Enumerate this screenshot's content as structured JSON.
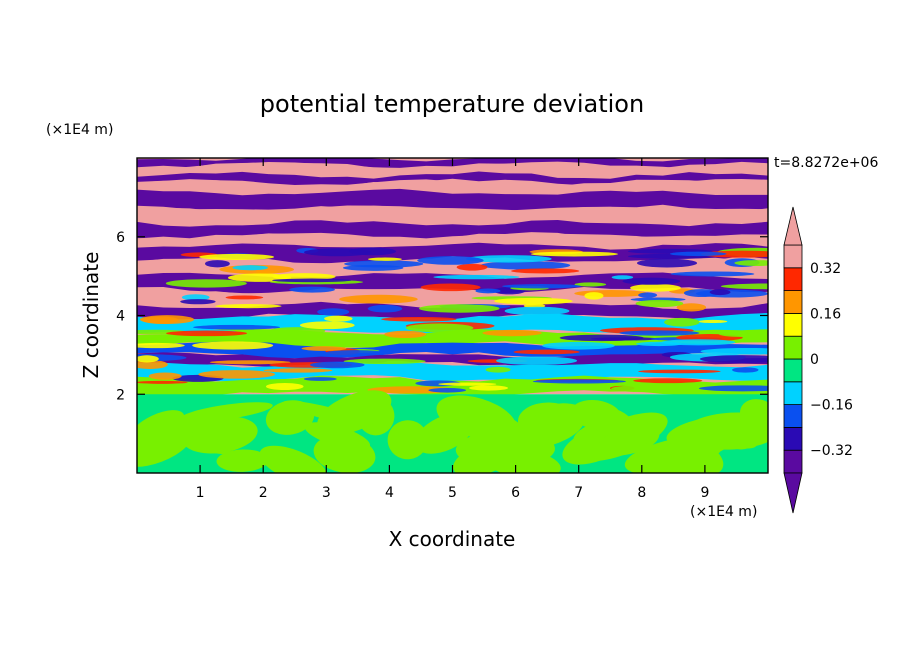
{
  "chart_data": {
    "type": "heatmap",
    "title": "potential temperature deviation",
    "xlabel": "X coordinate",
    "ylabel": "Z coordinate",
    "x_unit": "(×1E4 m)",
    "y_unit": "(×1E4 m)",
    "time_label": "t=8.8272e+06",
    "xlim": [
      0,
      10
    ],
    "ylim": [
      0,
      8
    ],
    "x_ticks": [
      1,
      2,
      3,
      4,
      5,
      6,
      7,
      8,
      9
    ],
    "x_tick_labels": [
      "1",
      "2",
      "3",
      "4",
      "5",
      "6",
      "7",
      "8",
      "9"
    ],
    "y_ticks": [
      2,
      4,
      6
    ],
    "y_tick_labels": [
      "2",
      "4",
      "6"
    ],
    "grid": false,
    "colorbar": {
      "levels": [
        -0.4,
        -0.32,
        -0.24,
        -0.16,
        -0.08,
        0,
        0.08,
        0.16,
        0.24,
        0.32,
        0.4
      ],
      "tick_values": [
        0.32,
        0.16,
        0,
        -0.16,
        -0.32
      ],
      "tick_labels": [
        "0.32",
        "0.16",
        "0",
        "−0.16",
        "−0.32"
      ],
      "colors_low_to_high": [
        "#5a0aa0",
        "#2a0ab4",
        "#0a50f0",
        "#00d2ff",
        "#00e682",
        "#78f000",
        "#ffff00",
        "#ff9600",
        "#ff2800",
        "#f0a0a0"
      ],
      "under_color": "#5a0aa0",
      "over_color": "#f0a0a0",
      "extend": "both"
    },
    "field": {
      "lower_region_top": 2.0,
      "lower_dominant_color": "#00e682",
      "lower_secondary_color": "#78f000",
      "upper_band_colors": [
        "#5a0aa0",
        "#f0a0a0"
      ],
      "transition_colors": [
        "#00d2ff",
        "#78f000",
        "#ffff00",
        "#ff9600",
        "#ff2800",
        "#0a50f0",
        "#2a0ab4"
      ]
    }
  }
}
